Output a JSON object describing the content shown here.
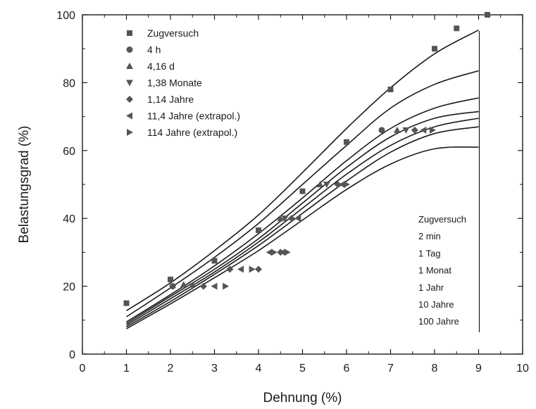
{
  "chart_data": {
    "type": "scatter",
    "xlabel": "Dehnung (%)",
    "ylabel": "Belastungsgrad (%)",
    "xlim": [
      0,
      10
    ],
    "ylim": [
      0,
      100
    ],
    "xticks": [
      0,
      1,
      2,
      3,
      4,
      5,
      6,
      7,
      8,
      9,
      10
    ],
    "yticks": [
      0,
      20,
      40,
      60,
      80,
      100
    ],
    "grid": false,
    "legend_position": "top-left",
    "series": [
      {
        "name": "Zugversuch",
        "marker": "square",
        "x": [
          1.0,
          2.0,
          3.0,
          4.0,
          5.0,
          6.0,
          7.0,
          8.0,
          8.5,
          9.2
        ],
        "y": [
          15,
          22,
          27.5,
          36.5,
          48,
          62.5,
          78,
          90,
          96,
          100
        ]
      },
      {
        "name": "4 h",
        "marker": "circle",
        "x": [
          2.05,
          6.8
        ],
        "y": [
          20,
          66
        ]
      },
      {
        "name": "4,16 d",
        "marker": "triangle-up",
        "x": [
          2.3,
          4.5,
          5.4,
          7.15
        ],
        "y": [
          20.5,
          40,
          50,
          66
        ]
      },
      {
        "name": "1,38 Monate",
        "marker": "triangle-down",
        "x": [
          2.5,
          4.6,
          5.55,
          7.35
        ],
        "y": [
          20,
          40,
          50,
          66
        ]
      },
      {
        "name": "1,14 Jahre",
        "marker": "diamond",
        "x": [
          2.75,
          3.35,
          4.0,
          4.5,
          4.75,
          5.8,
          7.55
        ],
        "y": [
          20,
          25,
          25,
          30,
          40,
          50,
          66
        ]
      },
      {
        "name": "11,4 Jahre (extrapol.)",
        "marker": "triangle-left",
        "x": [
          3.0,
          3.6,
          4.25,
          4.55,
          4.9,
          5.9,
          7.75
        ],
        "y": [
          20,
          25,
          30,
          30,
          40,
          50,
          66
        ]
      },
      {
        "name": "114 Jahre (extrapol.)",
        "marker": "triangle-right",
        "x": [
          3.25,
          3.85,
          4.35,
          4.65,
          6.0,
          7.95
        ],
        "y": [
          20,
          25,
          30,
          30,
          50,
          66
        ]
      }
    ],
    "curves": [
      {
        "label": "Zugversuch",
        "x": [
          1,
          2,
          3,
          4,
          5,
          6,
          7,
          8,
          9
        ],
        "y": [
          12.8,
          21.0,
          30.5,
          41.0,
          53.5,
          66.5,
          78.5,
          88.5,
          95.5
        ]
      },
      {
        "label": "2 min",
        "x": [
          1,
          2,
          3,
          4,
          5,
          6,
          7,
          8,
          9
        ],
        "y": [
          11.0,
          19.5,
          28.5,
          38.5,
          50.0,
          61.5,
          72.5,
          79.5,
          83.5
        ]
      },
      {
        "label": "1 Tag",
        "x": [
          1,
          2,
          3,
          4,
          5,
          6,
          7,
          8,
          9
        ],
        "y": [
          9.5,
          17.5,
          26.0,
          35.5,
          46.0,
          57.0,
          66.5,
          72.5,
          75.5
        ]
      },
      {
        "label": "1 Monat",
        "x": [
          1,
          2,
          3,
          4,
          5,
          6,
          7,
          8,
          9
        ],
        "y": [
          9.0,
          17.0,
          25.0,
          34.0,
          44.5,
          55.0,
          64.0,
          69.5,
          71.5
        ]
      },
      {
        "label": "1 Jahr",
        "x": [
          1,
          2,
          3,
          4,
          5,
          6,
          7,
          8,
          9
        ],
        "y": [
          8.5,
          16.3,
          24.2,
          33.0,
          43.0,
          53.0,
          61.5,
          67.0,
          69.5
        ]
      },
      {
        "label": "10 Jahre",
        "x": [
          1,
          2,
          3,
          4,
          5,
          6,
          7,
          8,
          9
        ],
        "y": [
          8.0,
          15.5,
          23.5,
          32.0,
          41.5,
          51.0,
          59.5,
          65.0,
          67.0
        ]
      },
      {
        "label": "100 Jahre",
        "x": [
          1,
          2,
          3,
          4,
          5,
          6,
          7,
          8,
          9
        ],
        "y": [
          7.5,
          14.8,
          22.5,
          30.5,
          39.5,
          48.5,
          56.0,
          60.5,
          61.0
        ]
      }
    ]
  }
}
